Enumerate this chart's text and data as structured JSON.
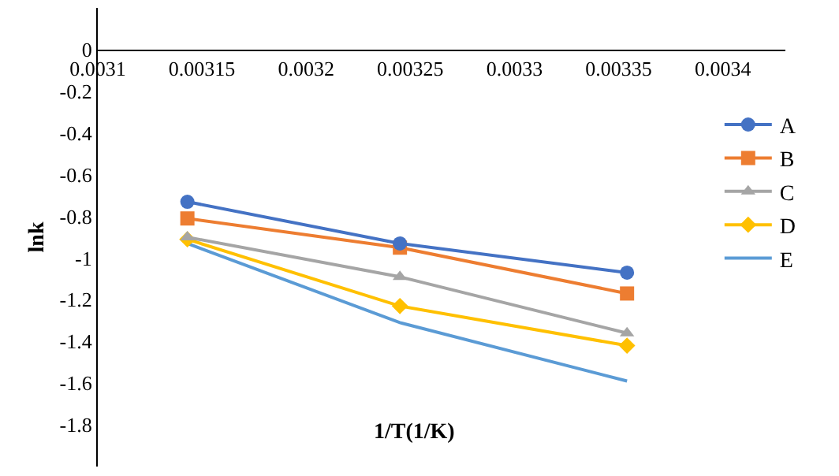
{
  "chart_data": {
    "type": "line",
    "xlabel": "1/T(1/K)",
    "ylabel": "lnk",
    "x": [
      0.003143,
      0.003245,
      0.003354
    ],
    "xlim": [
      0.0031,
      0.00343
    ],
    "xticks": [
      0.0031,
      0.00315,
      0.0032,
      0.00325,
      0.0033,
      0.00335,
      0.0034
    ],
    "ylim": [
      -2,
      0.2
    ],
    "yticks": [
      0,
      -0.2,
      -0.4,
      -0.6,
      -0.8,
      -1,
      -1.2,
      -1.4,
      -1.6,
      -1.8
    ],
    "grid": false,
    "legend": "right",
    "line_style": "solid",
    "series": [
      {
        "name": "A",
        "color": "#4472c4",
        "marker": "circle",
        "values": [
          -0.73,
          -0.93,
          -1.07
        ]
      },
      {
        "name": "B",
        "color": "#ed7d31",
        "marker": "square",
        "values": [
          -0.81,
          -0.95,
          -1.17
        ]
      },
      {
        "name": "C",
        "color": "#a5a5a5",
        "marker": "triangle",
        "values": [
          -0.9,
          -1.09,
          -1.36
        ]
      },
      {
        "name": "D",
        "color": "#ffc000",
        "marker": "diamond",
        "values": [
          -0.91,
          -1.23,
          -1.42
        ]
      },
      {
        "name": "E",
        "color": "#5b9bd5",
        "marker": "none",
        "values": [
          -0.93,
          -1.31,
          -1.59
        ]
      }
    ]
  }
}
